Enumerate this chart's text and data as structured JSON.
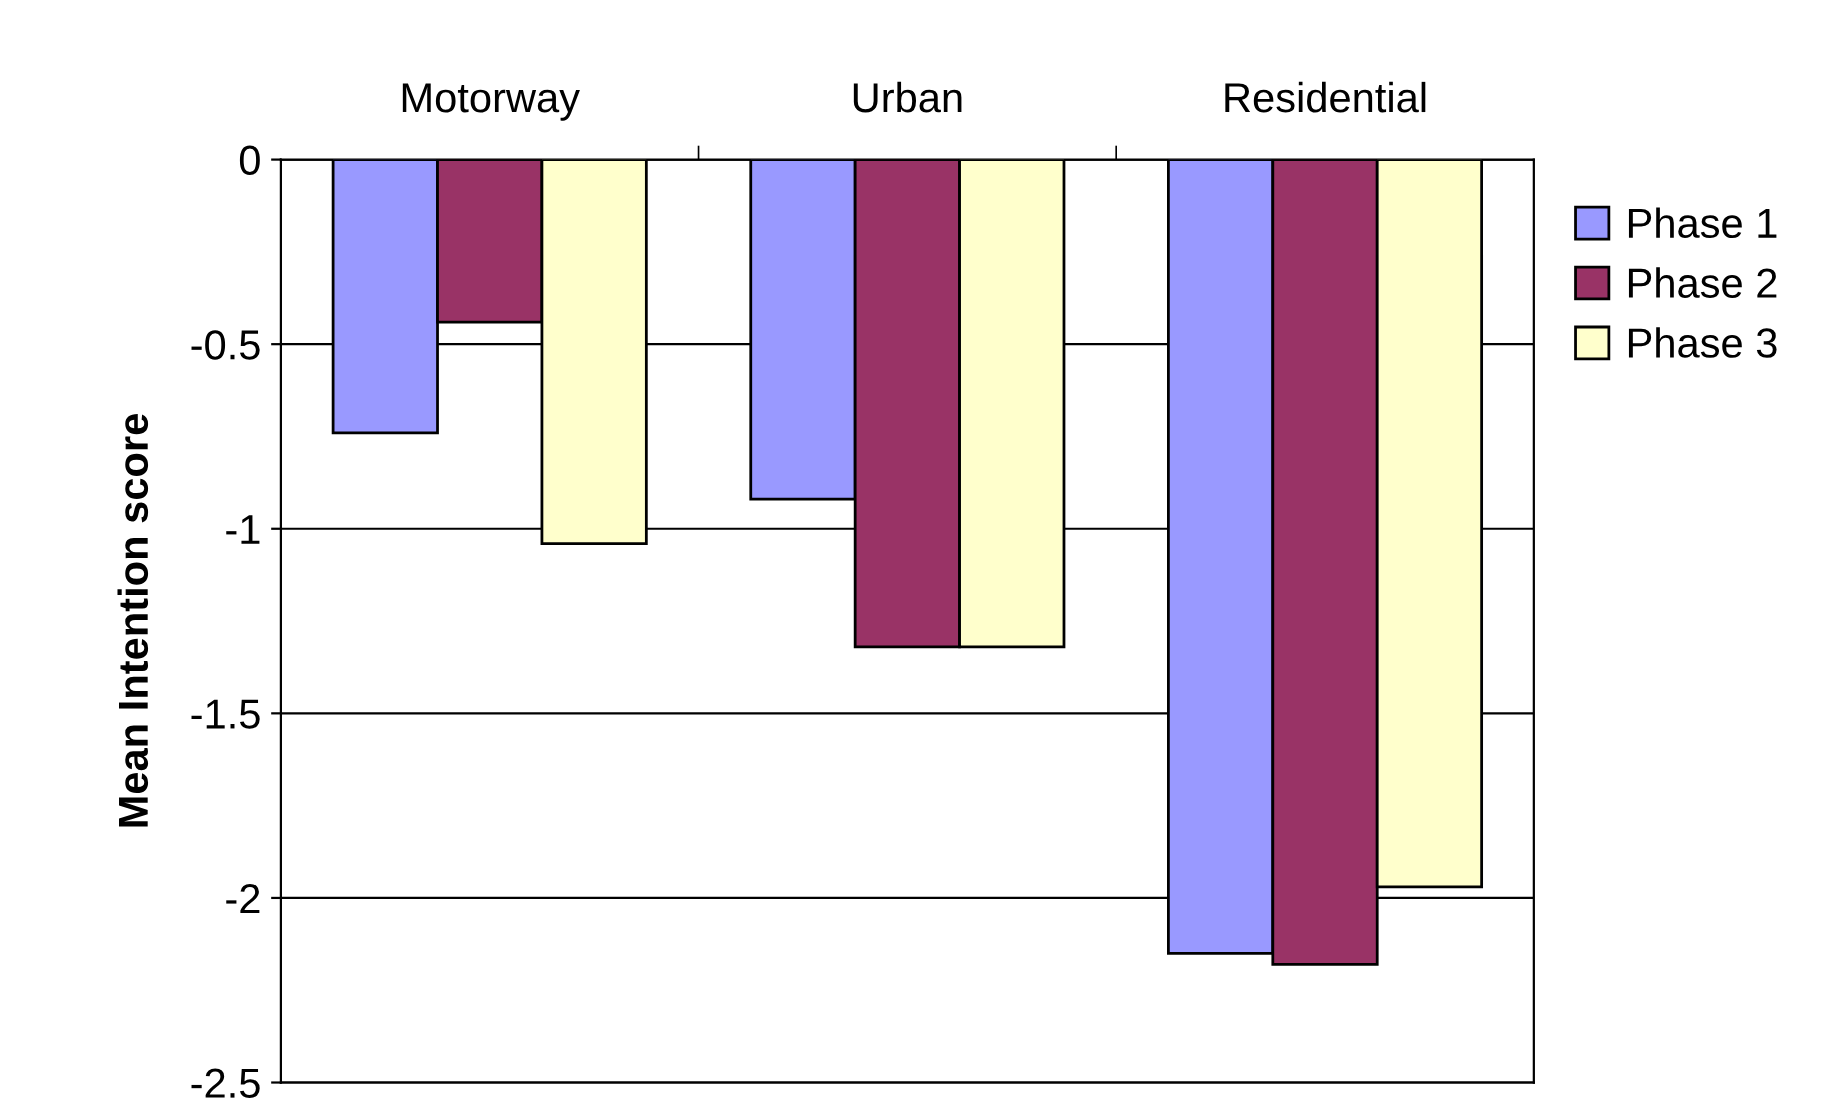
{
  "chart_data": {
    "type": "bar",
    "ylabel": "Mean Intention score",
    "categories": [
      "Motorway",
      "Urban",
      "Residential"
    ],
    "series": [
      {
        "name": "Phase 1",
        "color": "#9999ff",
        "values": [
          -0.74,
          -0.92,
          -2.15
        ]
      },
      {
        "name": "Phase 2",
        "color": "#993366",
        "values": [
          -0.44,
          -1.32,
          -2.18
        ]
      },
      {
        "name": "Phase 3",
        "color": "#ffffcc",
        "values": [
          -1.04,
          -1.32,
          -1.97
        ]
      }
    ],
    "ylim": [
      -2.5,
      0
    ],
    "yticks": [
      0,
      -0.5,
      -1,
      -1.5,
      -2,
      -2.5
    ],
    "grid": "y",
    "legend": "right"
  }
}
